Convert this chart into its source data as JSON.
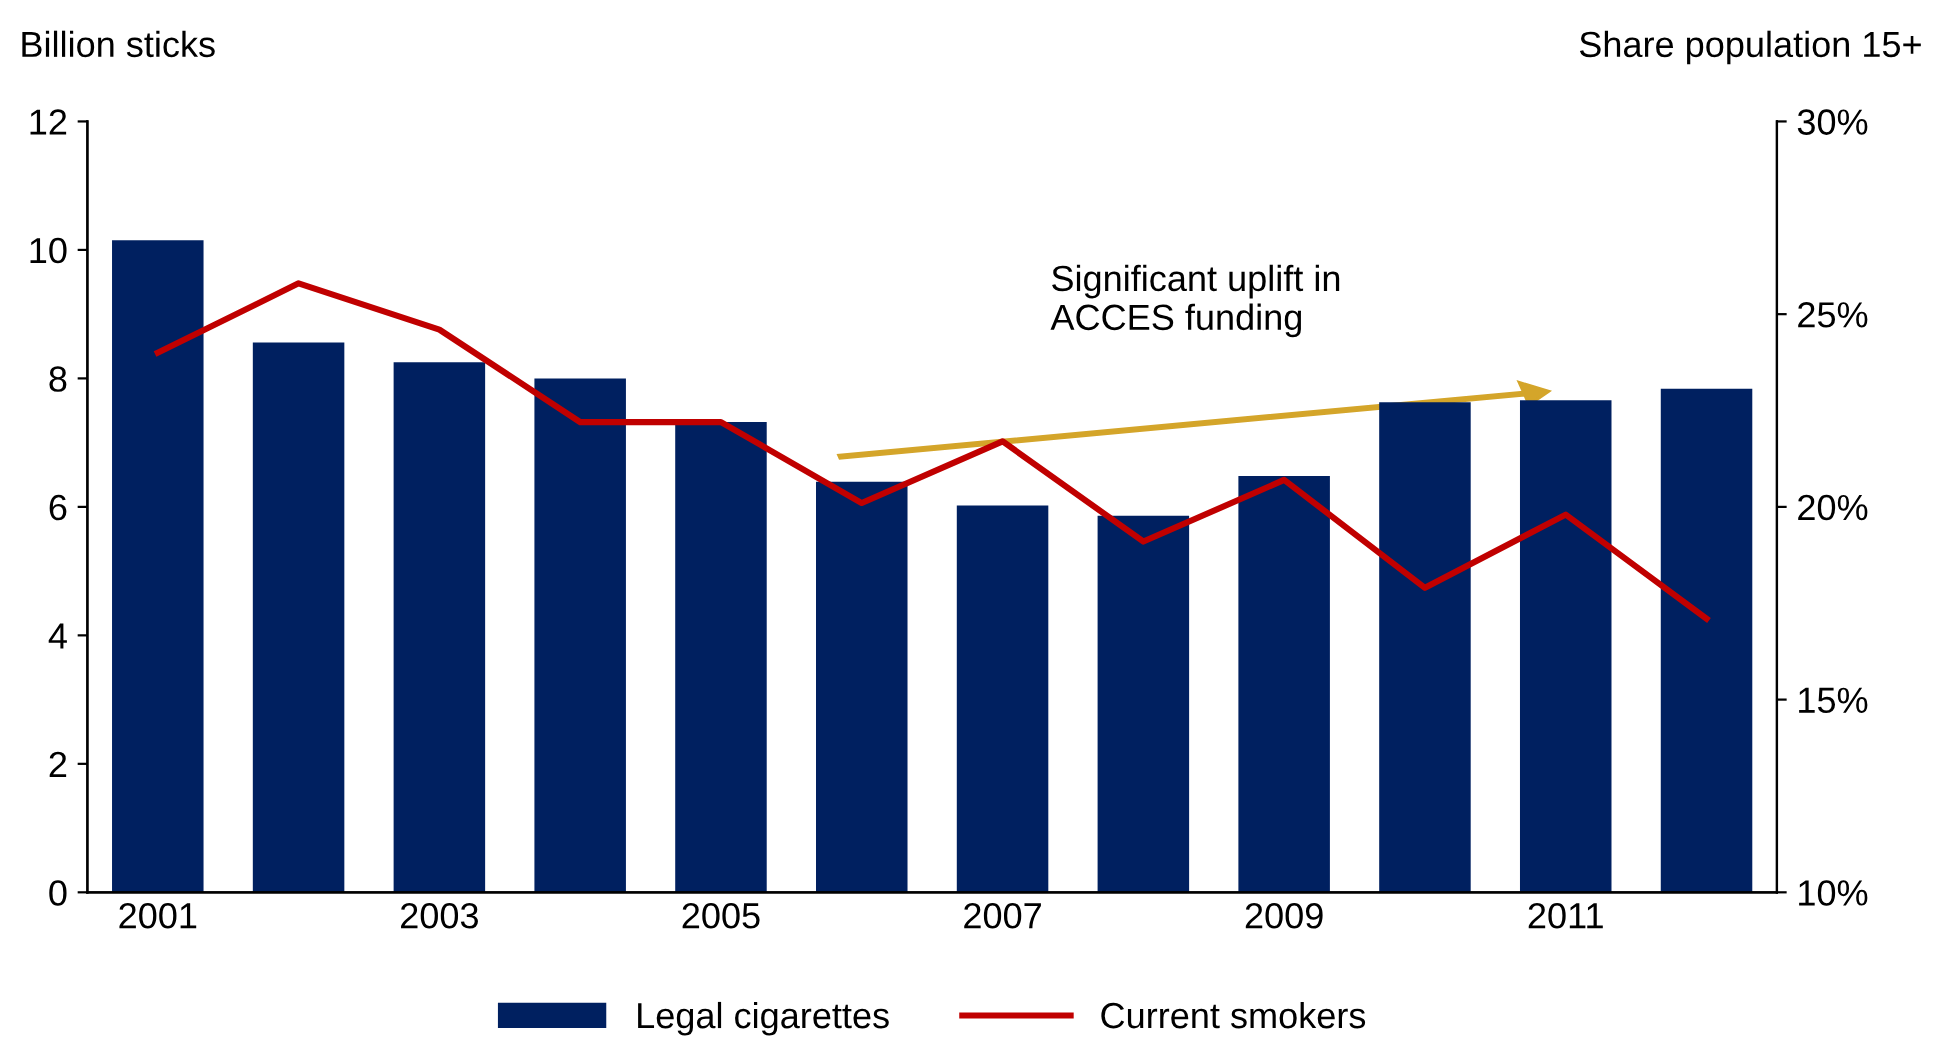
{
  "chart_data": {
    "type": "bar",
    "ylabel": "Billion sticks",
    "y2label": "Share population 15+",
    "categories": [
      "2001",
      null,
      "2003",
      null,
      "2005",
      null,
      "2007",
      null,
      "2009",
      null,
      "2011",
      null
    ],
    "series": [
      {
        "name": "Legal cigarettes",
        "color": "#002060",
        "values": [
          10.15,
          8.56,
          8.25,
          8.0,
          7.32,
          6.39,
          6.02,
          5.86,
          6.48,
          7.63,
          7.66,
          7.84
        ]
      },
      {
        "name": "Current smokers",
        "type": "line",
        "axis": "y2",
        "color": "#c00000",
        "values": [
          24.0,
          25.8,
          24.6,
          22.2,
          22.2,
          20.1,
          21.7,
          19.1,
          20.7,
          17.9,
          19.8,
          17.1
        ]
      }
    ],
    "ylim": [
      0,
      12
    ],
    "yticks": [
      0,
      2,
      4,
      6,
      8,
      10,
      12
    ],
    "y2lim": [
      10,
      30
    ],
    "y2ticks": [
      {
        "value": 10,
        "label": "10%"
      },
      {
        "value": 15,
        "label": "15%"
      },
      {
        "value": 20,
        "label": "20%"
      },
      {
        "value": 25,
        "label": "25%"
      },
      {
        "value": 30,
        "label": "30%"
      }
    ],
    "annotations": [
      "Significant uplift in\nACCES funding"
    ],
    "grid": false,
    "legend": "bottom",
    "marker": "none",
    "line_style": "solid"
  }
}
